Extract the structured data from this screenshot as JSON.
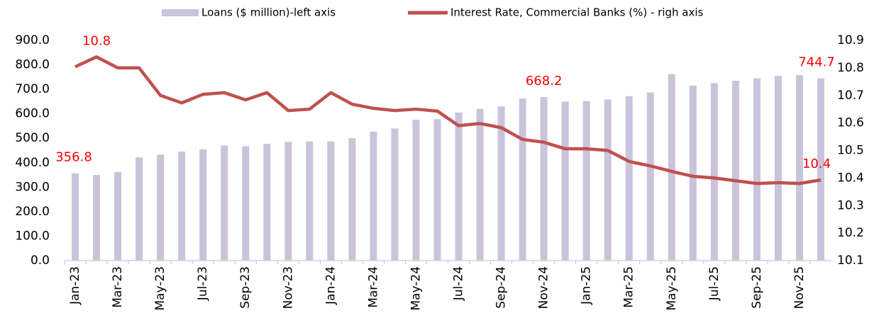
{
  "chart_data": {
    "type": "bar-line",
    "categories": [
      "Jan-23",
      null,
      "Mar-23",
      null,
      "May-23",
      null,
      "Jul-23",
      null,
      "Sep-23",
      null,
      "Nov-23",
      null,
      "Jan-24",
      null,
      "Mar-24",
      null,
      "May-24",
      null,
      "Jul-24",
      null,
      "Sep-24",
      null,
      "Nov-24",
      null,
      "Jan-25",
      null,
      "Mar-25",
      null,
      "May-25",
      null,
      "Jul-25",
      null,
      "Sep-25",
      null,
      "Nov-25",
      null
    ],
    "series": [
      {
        "name": "Loans ($ million)-left axis",
        "type": "bar",
        "axis": "y",
        "color": "#cbc3dc",
        "values": [
          356.8,
          350,
          362,
          422,
          433,
          445,
          455,
          470,
          467,
          477,
          485,
          487,
          487,
          500,
          527,
          540,
          575,
          578,
          605,
          620,
          630,
          662,
          668.2,
          650,
          652,
          658,
          672,
          687,
          762,
          715,
          725,
          735,
          745,
          755,
          758,
          744.7
        ],
        "value_labels": [
          "356.8",
          null,
          null,
          null,
          null,
          null,
          null,
          null,
          null,
          null,
          null,
          null,
          null,
          null,
          null,
          null,
          null,
          null,
          null,
          null,
          null,
          null,
          "668.2",
          null,
          null,
          null,
          null,
          null,
          null,
          null,
          null,
          null,
          null,
          null,
          null,
          "744.7"
        ]
      },
      {
        "name": "Interest Rate, Commercial Banks (%) - righ axis",
        "type": "line",
        "axis": "y2",
        "color": "#c0504d",
        "values": [
          10.804,
          10.84,
          10.8,
          10.8,
          10.7,
          10.673,
          10.704,
          10.71,
          10.684,
          10.71,
          10.645,
          10.65,
          10.71,
          10.668,
          10.653,
          10.645,
          10.65,
          10.643,
          10.59,
          10.598,
          10.583,
          10.54,
          10.53,
          10.506,
          10.506,
          10.5,
          10.46,
          10.444,
          10.424,
          10.406,
          10.4,
          10.39,
          10.38,
          10.383,
          10.38,
          10.393
        ],
        "value_labels": [
          null,
          "10.8",
          null,
          null,
          null,
          null,
          null,
          null,
          null,
          null,
          null,
          null,
          null,
          null,
          null,
          null,
          null,
          null,
          null,
          null,
          null,
          null,
          null,
          null,
          null,
          null,
          null,
          null,
          null,
          null,
          null,
          null,
          null,
          null,
          null,
          "10.4"
        ]
      }
    ],
    "ylim": [
      0,
      900
    ],
    "yticks": [
      {
        "value": 0,
        "label": "0.0"
      },
      {
        "value": 100,
        "label": "100.0"
      },
      {
        "value": 200,
        "label": "200.0"
      },
      {
        "value": 300,
        "label": "300.0"
      },
      {
        "value": 400,
        "label": "400.0"
      },
      {
        "value": 500,
        "label": "500.0"
      },
      {
        "value": 600,
        "label": "600.0"
      },
      {
        "value": 700,
        "label": "700.0"
      },
      {
        "value": 800,
        "label": "800.0"
      },
      {
        "value": 900,
        "label": "900.0"
      }
    ],
    "y2lim": [
      10.1,
      10.9
    ],
    "y2ticks": [
      10.1,
      10.2,
      10.3,
      10.4,
      10.5,
      10.6,
      10.7,
      10.8,
      10.9
    ],
    "legend": "top"
  }
}
